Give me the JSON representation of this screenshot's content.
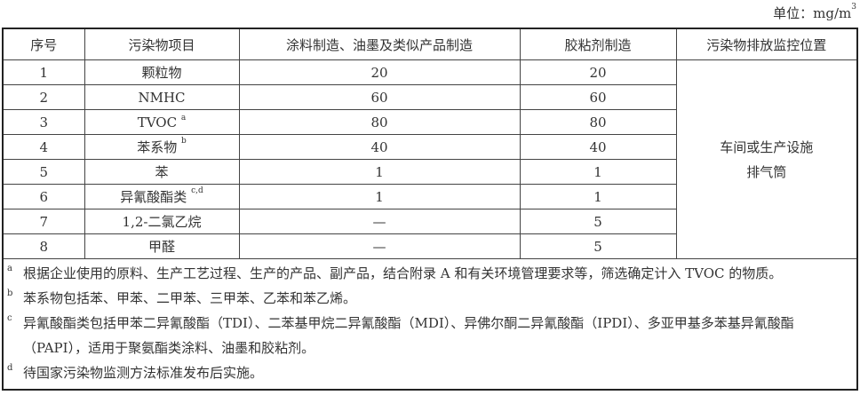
{
  "unit": {
    "label": "单位：mg/m",
    "sup": "3"
  },
  "headers": [
    "序号",
    "污染物项目",
    "涂料制造、油墨及类似产品制造",
    "胶粘剂制造",
    "污染物排放监控位置"
  ],
  "rows": [
    {
      "no": "1",
      "item": "颗粒物",
      "sup": "",
      "coating": "20",
      "adhesive": "20"
    },
    {
      "no": "2",
      "item": "NMHC",
      "sup": "",
      "coating": "60",
      "adhesive": "60"
    },
    {
      "no": "3",
      "item": "TVOC",
      "sup": "a",
      "coating": "80",
      "adhesive": "80"
    },
    {
      "no": "4",
      "item": "苯系物",
      "sup": "b",
      "coating": "40",
      "adhesive": "40"
    },
    {
      "no": "5",
      "item": "苯",
      "sup": "",
      "coating": "1",
      "adhesive": "1"
    },
    {
      "no": "6",
      "item": "异氰酸酯类",
      "sup": "c,d",
      "coating": "1",
      "adhesive": "1"
    },
    {
      "no": "7",
      "item": "1,2-二氯乙烷",
      "sup": "",
      "coating": "—",
      "adhesive": "5"
    },
    {
      "no": "8",
      "item": "甲醛",
      "sup": "",
      "coating": "—",
      "adhesive": "5"
    }
  ],
  "location": {
    "line1": "车间或生产设施",
    "line2": "排气筒"
  },
  "notes": [
    {
      "mark": "a",
      "text": "根据企业使用的原料、生产工艺过程、生产的产品、副产品，结合附录 A 和有关环境管理要求等，筛选确定计入 TVOC 的物质。"
    },
    {
      "mark": "b",
      "text": "苯系物包括苯、甲苯、二甲苯、三甲苯、乙苯和苯乙烯。"
    },
    {
      "mark": "c",
      "text": "异氰酸酯类包括甲苯二异氰酸酯（TDI）、二苯基甲烷二异氰酸酯（MDI）、异佛尔酮二异氰酸酯（IPDI）、多亚甲基多苯基异氰酸酯（PAPI），适用于聚氨酯类涂料、油墨和胶粘剂。"
    },
    {
      "mark": "d",
      "text": "待国家污染物监测方法标准发布后实施。"
    }
  ]
}
